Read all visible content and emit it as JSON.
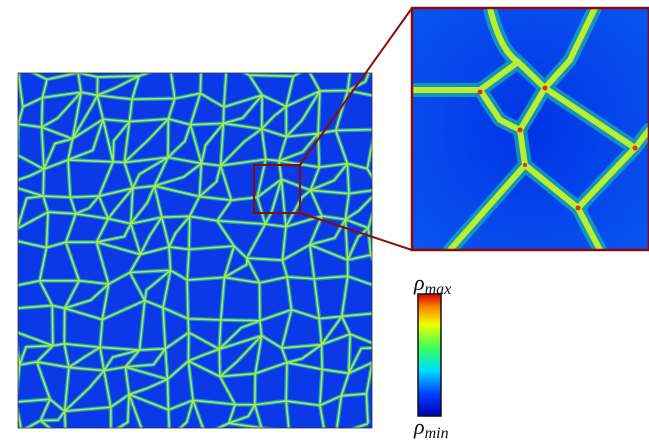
{
  "colorbar": {
    "max_label": {
      "symbol": "ρ",
      "subscript": "max"
    },
    "min_label": {
      "symbol": "ρ",
      "subscript": "min"
    }
  }
}
